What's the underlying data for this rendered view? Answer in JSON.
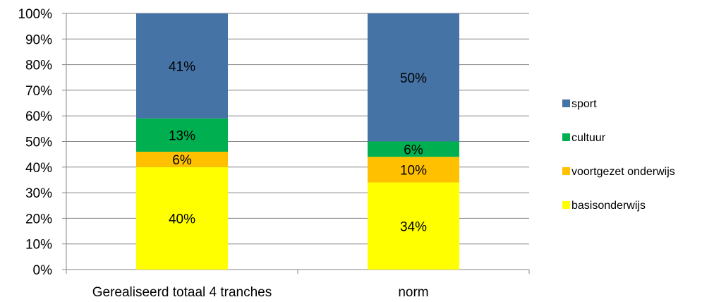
{
  "chart_data": {
    "type": "bar",
    "stacked": true,
    "percent_stacked": true,
    "categories": [
      "Gerealiseerd totaal 4 tranches",
      "norm"
    ],
    "series": [
      {
        "name": "basisonderwijs",
        "color": "#FFFF00",
        "values": [
          40,
          34
        ],
        "labels": [
          "40%",
          "34%"
        ]
      },
      {
        "name": "voortgezet onderwijs",
        "color": "#FFC000",
        "values": [
          6,
          10
        ],
        "labels": [
          "6%",
          "10%"
        ]
      },
      {
        "name": "cultuur",
        "color": "#00B050",
        "values": [
          13,
          6
        ],
        "labels": [
          "13%",
          "6%"
        ]
      },
      {
        "name": "sport",
        "color": "#4673A6",
        "values": [
          41,
          50
        ],
        "labels": [
          "41%",
          "50%"
        ]
      }
    ],
    "y_ticks": [
      "0%",
      "10%",
      "20%",
      "30%",
      "40%",
      "50%",
      "60%",
      "70%",
      "80%",
      "90%",
      "100%"
    ],
    "ylim": [
      0,
      100
    ],
    "grid": true,
    "legend": {
      "placement": "right",
      "order": [
        "sport",
        "cultuur",
        "voortgezet onderwijs",
        "basisonderwijs"
      ]
    }
  }
}
